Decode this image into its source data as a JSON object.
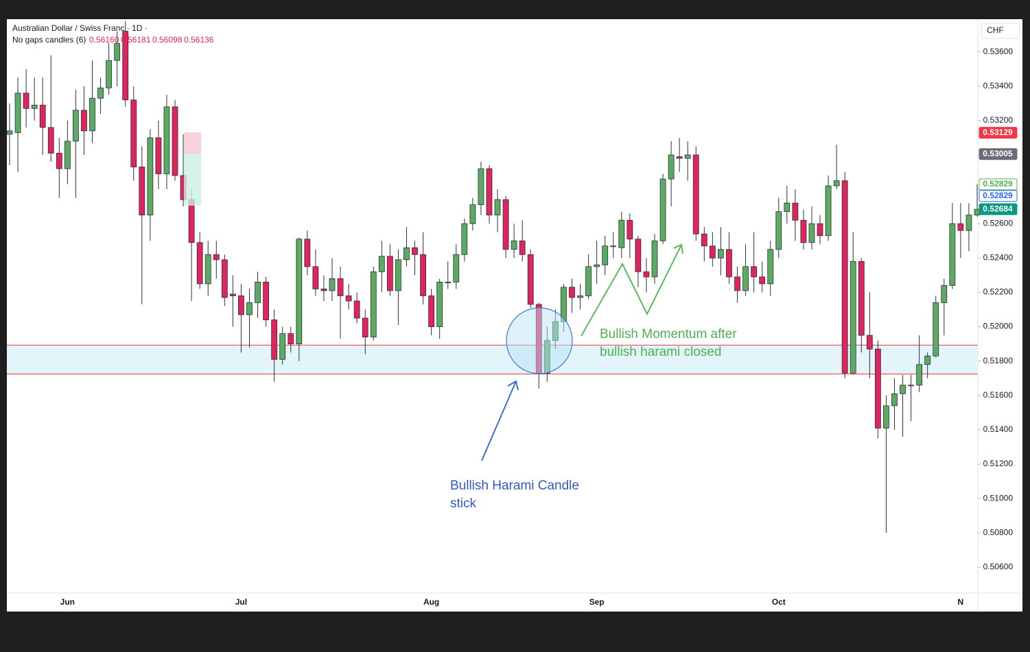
{
  "chart_data": {
    "type": "candlestick",
    "title": "Australian Dollar / Swiss Franc · 1D ·",
    "subtitle": "No gaps candles (6)",
    "legend_values": [
      "0.56160",
      "0.56181",
      "0.56098",
      "0.56136"
    ],
    "currency": "CHF",
    "up_color": "#5cab62",
    "down_color": "#e0245e",
    "grid": false,
    "ylim": [
      0.5045,
      0.5379
    ],
    "yticks": [
      {
        "value": 0.536,
        "label": "0.53600"
      },
      {
        "value": 0.534,
        "label": "0.53400"
      },
      {
        "value": 0.532,
        "label": "0.53200"
      },
      {
        "value": 0.53,
        "label": "0.53000"
      },
      {
        "value": 0.528,
        "label": "0.52800"
      },
      {
        "value": 0.526,
        "label": "0.52600"
      },
      {
        "value": 0.524,
        "label": "0.52400"
      },
      {
        "value": 0.522,
        "label": "0.52200"
      },
      {
        "value": 0.52,
        "label": "0.52000"
      },
      {
        "value": 0.518,
        "label": "0.51800"
      },
      {
        "value": 0.516,
        "label": "0.51600"
      },
      {
        "value": 0.514,
        "label": "0.51400"
      },
      {
        "value": 0.512,
        "label": "0.51200"
      },
      {
        "value": 0.51,
        "label": "0.51000"
      },
      {
        "value": 0.508,
        "label": "0.50800"
      },
      {
        "value": 0.506,
        "label": "0.50600"
      }
    ],
    "price_badges": [
      {
        "value": 0.53129,
        "color": "#f23645",
        "outline": false
      },
      {
        "value": 0.53005,
        "color": "#6a6d78",
        "outline": false
      },
      {
        "value": 0.52829,
        "color": "#4caf50",
        "outline": true
      },
      {
        "value": 0.52829,
        "color": "#2962ff",
        "outline": true
      },
      {
        "value": 0.52684,
        "color": "#089981",
        "outline": false
      }
    ],
    "zone": {
      "from": 0.51725,
      "to": 0.51893,
      "color": "#e3f5fb",
      "line_color": "#f23645"
    },
    "annotations": [
      {
        "lines": [
          "Bullish Momentum after",
          "bullish harami closed"
        ],
        "color": "#4caf50"
      },
      {
        "lines": [
          "Bullish Harami Candle",
          "stick"
        ],
        "color": "#3358c4"
      }
    ],
    "categories": [
      null,
      null,
      null,
      null,
      null,
      null,
      null,
      "Jun",
      null,
      null,
      null,
      null,
      null,
      null,
      null,
      null,
      null,
      null,
      null,
      null,
      null,
      null,
      null,
      null,
      null,
      null,
      null,
      null,
      "Jul",
      null,
      null,
      null,
      null,
      null,
      null,
      null,
      null,
      null,
      null,
      null,
      null,
      null,
      null,
      null,
      null,
      null,
      null,
      null,
      null,
      null,
      null,
      "Aug",
      null,
      null,
      null,
      null,
      null,
      null,
      null,
      null,
      null,
      null,
      null,
      null,
      null,
      null,
      null,
      null,
      null,
      null,
      null,
      "Sep",
      null,
      null,
      null,
      null,
      null,
      null,
      null,
      null,
      null,
      null,
      null,
      null,
      null,
      null,
      null,
      null,
      null,
      null,
      null,
      null,
      null,
      "Oct",
      null,
      null,
      null,
      null,
      null,
      null,
      null,
      null,
      null,
      null,
      null,
      null,
      null,
      null,
      null,
      null,
      null,
      null,
      null,
      null,
      null,
      "N"
    ],
    "candles": [
      {
        "o": 0.5312,
        "h": 0.533,
        "l": 0.5294,
        "c": 0.5314
      },
      {
        "o": 0.5313,
        "h": 0.5345,
        "l": 0.529,
        "c": 0.5336
      },
      {
        "o": 0.5336,
        "h": 0.535,
        "l": 0.5316,
        "c": 0.5327
      },
      {
        "o": 0.5327,
        "h": 0.5345,
        "l": 0.532,
        "c": 0.5329
      },
      {
        "o": 0.5329,
        "h": 0.5345,
        "l": 0.53,
        "c": 0.5316
      },
      {
        "o": 0.5316,
        "h": 0.5358,
        "l": 0.5296,
        "c": 0.5301
      },
      {
        "o": 0.5301,
        "h": 0.531,
        "l": 0.5275,
        "c": 0.5292
      },
      {
        "o": 0.5292,
        "h": 0.532,
        "l": 0.5283,
        "c": 0.5308
      },
      {
        "o": 0.5308,
        "h": 0.5338,
        "l": 0.5275,
        "c": 0.5326
      },
      {
        "o": 0.5326,
        "h": 0.534,
        "l": 0.53,
        "c": 0.5314
      },
      {
        "o": 0.5314,
        "h": 0.5355,
        "l": 0.5307,
        "c": 0.5333
      },
      {
        "o": 0.5333,
        "h": 0.5345,
        "l": 0.5324,
        "c": 0.5339
      },
      {
        "o": 0.5339,
        "h": 0.5365,
        "l": 0.5335,
        "c": 0.5355
      },
      {
        "o": 0.5355,
        "h": 0.5372,
        "l": 0.534,
        "c": 0.5365
      },
      {
        "o": 0.5372,
        "h": 0.5378,
        "l": 0.5328,
        "c": 0.5332
      },
      {
        "o": 0.5332,
        "h": 0.534,
        "l": 0.5285,
        "c": 0.5293
      },
      {
        "o": 0.5293,
        "h": 0.5305,
        "l": 0.5213,
        "c": 0.5265
      },
      {
        "o": 0.5265,
        "h": 0.5315,
        "l": 0.525,
        "c": 0.531
      },
      {
        "o": 0.531,
        "h": 0.532,
        "l": 0.528,
        "c": 0.5289
      },
      {
        "o": 0.5289,
        "h": 0.5335,
        "l": 0.528,
        "c": 0.5328
      },
      {
        "o": 0.5328,
        "h": 0.5332,
        "l": 0.5285,
        "c": 0.5288
      },
      {
        "o": 0.5288,
        "h": 0.5312,
        "l": 0.527,
        "c": 0.5274
      },
      {
        "o": 0.5274,
        "h": 0.528,
        "l": 0.5215,
        "c": 0.5249
      },
      {
        "o": 0.5249,
        "h": 0.5255,
        "l": 0.5222,
        "c": 0.5225
      },
      {
        "o": 0.5225,
        "h": 0.525,
        "l": 0.5218,
        "c": 0.5242
      },
      {
        "o": 0.5242,
        "h": 0.525,
        "l": 0.5228,
        "c": 0.5239
      },
      {
        "o": 0.5239,
        "h": 0.5242,
        "l": 0.5212,
        "c": 0.5217
      },
      {
        "o": 0.5219,
        "h": 0.523,
        "l": 0.52,
        "c": 0.5218
      },
      {
        "o": 0.5218,
        "h": 0.5225,
        "l": 0.5185,
        "c": 0.5207
      },
      {
        "o": 0.5207,
        "h": 0.5222,
        "l": 0.5188,
        "c": 0.5214
      },
      {
        "o": 0.5214,
        "h": 0.5232,
        "l": 0.5205,
        "c": 0.5226
      },
      {
        "o": 0.5226,
        "h": 0.5229,
        "l": 0.52,
        "c": 0.5204
      },
      {
        "o": 0.5204,
        "h": 0.521,
        "l": 0.5168,
        "c": 0.5181
      },
      {
        "o": 0.5181,
        "h": 0.52,
        "l": 0.5178,
        "c": 0.5196
      },
      {
        "o": 0.5196,
        "h": 0.52,
        "l": 0.5185,
        "c": 0.519
      },
      {
        "o": 0.519,
        "h": 0.5252,
        "l": 0.518,
        "c": 0.5251
      },
      {
        "o": 0.5251,
        "h": 0.5256,
        "l": 0.523,
        "c": 0.5235
      },
      {
        "o": 0.5235,
        "h": 0.5245,
        "l": 0.5218,
        "c": 0.5222
      },
      {
        "o": 0.5222,
        "h": 0.523,
        "l": 0.5215,
        "c": 0.5221
      },
      {
        "o": 0.5221,
        "h": 0.524,
        "l": 0.5215,
        "c": 0.5228
      },
      {
        "o": 0.5228,
        "h": 0.5235,
        "l": 0.5193,
        "c": 0.5218
      },
      {
        "o": 0.5218,
        "h": 0.5225,
        "l": 0.521,
        "c": 0.5215
      },
      {
        "o": 0.5215,
        "h": 0.522,
        "l": 0.5202,
        "c": 0.5205
      },
      {
        "o": 0.5205,
        "h": 0.521,
        "l": 0.5184,
        "c": 0.5194
      },
      {
        "o": 0.5194,
        "h": 0.5235,
        "l": 0.5192,
        "c": 0.5232
      },
      {
        "o": 0.5232,
        "h": 0.525,
        "l": 0.522,
        "c": 0.5241
      },
      {
        "o": 0.5241,
        "h": 0.5248,
        "l": 0.5218,
        "c": 0.5221
      },
      {
        "o": 0.5221,
        "h": 0.5245,
        "l": 0.5201,
        "c": 0.5239
      },
      {
        "o": 0.5239,
        "h": 0.5258,
        "l": 0.5235,
        "c": 0.5246
      },
      {
        "o": 0.5246,
        "h": 0.525,
        "l": 0.523,
        "c": 0.5242
      },
      {
        "o": 0.5242,
        "h": 0.5255,
        "l": 0.5213,
        "c": 0.5218
      },
      {
        "o": 0.5218,
        "h": 0.5222,
        "l": 0.5195,
        "c": 0.52
      },
      {
        "o": 0.52,
        "h": 0.5228,
        "l": 0.5193,
        "c": 0.5226
      },
      {
        "o": 0.5226,
        "h": 0.5238,
        "l": 0.5222,
        "c": 0.5226
      },
      {
        "o": 0.5226,
        "h": 0.5248,
        "l": 0.5222,
        "c": 0.5242
      },
      {
        "o": 0.5242,
        "h": 0.5263,
        "l": 0.5238,
        "c": 0.526
      },
      {
        "o": 0.526,
        "h": 0.5275,
        "l": 0.5256,
        "c": 0.5271
      },
      {
        "o": 0.5271,
        "h": 0.5296,
        "l": 0.5265,
        "c": 0.5292
      },
      {
        "o": 0.5292,
        "h": 0.5294,
        "l": 0.526,
        "c": 0.5265
      },
      {
        "o": 0.5265,
        "h": 0.528,
        "l": 0.5255,
        "c": 0.5274
      },
      {
        "o": 0.5274,
        "h": 0.5276,
        "l": 0.524,
        "c": 0.5245
      },
      {
        "o": 0.5245,
        "h": 0.526,
        "l": 0.524,
        "c": 0.525
      },
      {
        "o": 0.525,
        "h": 0.5262,
        "l": 0.5238,
        "c": 0.5242
      },
      {
        "o": 0.5242,
        "h": 0.5245,
        "l": 0.5211,
        "c": 0.5213
      },
      {
        "o": 0.5213,
        "h": 0.5214,
        "l": 0.5164,
        "c": 0.5173
      },
      {
        "o": 0.5173,
        "h": 0.52,
        "l": 0.5168,
        "c": 0.5192
      },
      {
        "o": 0.5192,
        "h": 0.521,
        "l": 0.5187,
        "c": 0.5203
      },
      {
        "o": 0.5203,
        "h": 0.5225,
        "l": 0.5197,
        "c": 0.5223
      },
      {
        "o": 0.5223,
        "h": 0.5228,
        "l": 0.5208,
        "c": 0.5217
      },
      {
        "o": 0.5217,
        "h": 0.5225,
        "l": 0.521,
        "c": 0.5218
      },
      {
        "o": 0.5218,
        "h": 0.5242,
        "l": 0.5216,
        "c": 0.5235
      },
      {
        "o": 0.5235,
        "h": 0.525,
        "l": 0.5225,
        "c": 0.5236
      },
      {
        "o": 0.5236,
        "h": 0.5253,
        "l": 0.523,
        "c": 0.5247
      },
      {
        "o": 0.5247,
        "h": 0.5255,
        "l": 0.524,
        "c": 0.5247
      },
      {
        "o": 0.5246,
        "h": 0.5267,
        "l": 0.524,
        "c": 0.5262
      },
      {
        "o": 0.5262,
        "h": 0.5266,
        "l": 0.524,
        "c": 0.5251
      },
      {
        "o": 0.5251,
        "h": 0.5253,
        "l": 0.5223,
        "c": 0.5232
      },
      {
        "o": 0.5232,
        "h": 0.524,
        "l": 0.522,
        "c": 0.5229
      },
      {
        "o": 0.5229,
        "h": 0.5254,
        "l": 0.5225,
        "c": 0.525
      },
      {
        "o": 0.525,
        "h": 0.5289,
        "l": 0.5248,
        "c": 0.5286
      },
      {
        "o": 0.5286,
        "h": 0.5308,
        "l": 0.527,
        "c": 0.53
      },
      {
        "o": 0.5299,
        "h": 0.531,
        "l": 0.529,
        "c": 0.5298
      },
      {
        "o": 0.5298,
        "h": 0.5308,
        "l": 0.5285,
        "c": 0.53
      },
      {
        "o": 0.53,
        "h": 0.5305,
        "l": 0.525,
        "c": 0.5254
      },
      {
        "o": 0.5254,
        "h": 0.5258,
        "l": 0.5238,
        "c": 0.5247
      },
      {
        "o": 0.5247,
        "h": 0.5255,
        "l": 0.5235,
        "c": 0.524
      },
      {
        "o": 0.524,
        "h": 0.5258,
        "l": 0.523,
        "c": 0.5245
      },
      {
        "o": 0.5245,
        "h": 0.5255,
        "l": 0.5225,
        "c": 0.5229
      },
      {
        "o": 0.5229,
        "h": 0.5235,
        "l": 0.5214,
        "c": 0.5221
      },
      {
        "o": 0.5221,
        "h": 0.5248,
        "l": 0.5218,
        "c": 0.5235
      },
      {
        "o": 0.5235,
        "h": 0.5255,
        "l": 0.522,
        "c": 0.5229
      },
      {
        "o": 0.5229,
        "h": 0.5238,
        "l": 0.522,
        "c": 0.5225
      },
      {
        "o": 0.5225,
        "h": 0.525,
        "l": 0.5218,
        "c": 0.5245
      },
      {
        "o": 0.5245,
        "h": 0.5275,
        "l": 0.524,
        "c": 0.5267
      },
      {
        "o": 0.5267,
        "h": 0.5282,
        "l": 0.526,
        "c": 0.5272
      },
      {
        "o": 0.5272,
        "h": 0.528,
        "l": 0.525,
        "c": 0.5262
      },
      {
        "o": 0.5262,
        "h": 0.5268,
        "l": 0.5245,
        "c": 0.5249
      },
      {
        "o": 0.5249,
        "h": 0.527,
        "l": 0.5245,
        "c": 0.526
      },
      {
        "o": 0.526,
        "h": 0.5265,
        "l": 0.5248,
        "c": 0.5253
      },
      {
        "o": 0.5253,
        "h": 0.5288,
        "l": 0.525,
        "c": 0.5282
      },
      {
        "o": 0.5282,
        "h": 0.5306,
        "l": 0.528,
        "c": 0.5285
      },
      {
        "o": 0.5285,
        "h": 0.529,
        "l": 0.517,
        "c": 0.5173
      },
      {
        "o": 0.5173,
        "h": 0.5255,
        "l": 0.5172,
        "c": 0.5238
      },
      {
        "o": 0.5238,
        "h": 0.524,
        "l": 0.5185,
        "c": 0.5195
      },
      {
        "o": 0.5195,
        "h": 0.522,
        "l": 0.517,
        "c": 0.5187
      },
      {
        "o": 0.5187,
        "h": 0.5192,
        "l": 0.5135,
        "c": 0.5141
      },
      {
        "o": 0.5141,
        "h": 0.516,
        "l": 0.508,
        "c": 0.5154
      },
      {
        "o": 0.5154,
        "h": 0.517,
        "l": 0.514,
        "c": 0.5161
      },
      {
        "o": 0.5161,
        "h": 0.5172,
        "l": 0.5136,
        "c": 0.5166
      },
      {
        "o": 0.5166,
        "h": 0.5172,
        "l": 0.5145,
        "c": 0.5166
      },
      {
        "o": 0.5166,
        "h": 0.5195,
        "l": 0.5162,
        "c": 0.5178
      },
      {
        "o": 0.5178,
        "h": 0.5185,
        "l": 0.517,
        "c": 0.5183
      },
      {
        "o": 0.5183,
        "h": 0.5218,
        "l": 0.5182,
        "c": 0.5214
      },
      {
        "o": 0.5214,
        "h": 0.5228,
        "l": 0.5195,
        "c": 0.5224
      },
      {
        "o": 0.5224,
        "h": 0.5272,
        "l": 0.5222,
        "c": 0.526
      },
      {
        "o": 0.526,
        "h": 0.5272,
        "l": 0.524,
        "c": 0.5256
      },
      {
        "o": 0.5256,
        "h": 0.5272,
        "l": 0.5244,
        "c": 0.5265
      },
      {
        "o": 0.5265,
        "h": 0.5283,
        "l": 0.5264,
        "c": 0.52684
      }
    ]
  }
}
